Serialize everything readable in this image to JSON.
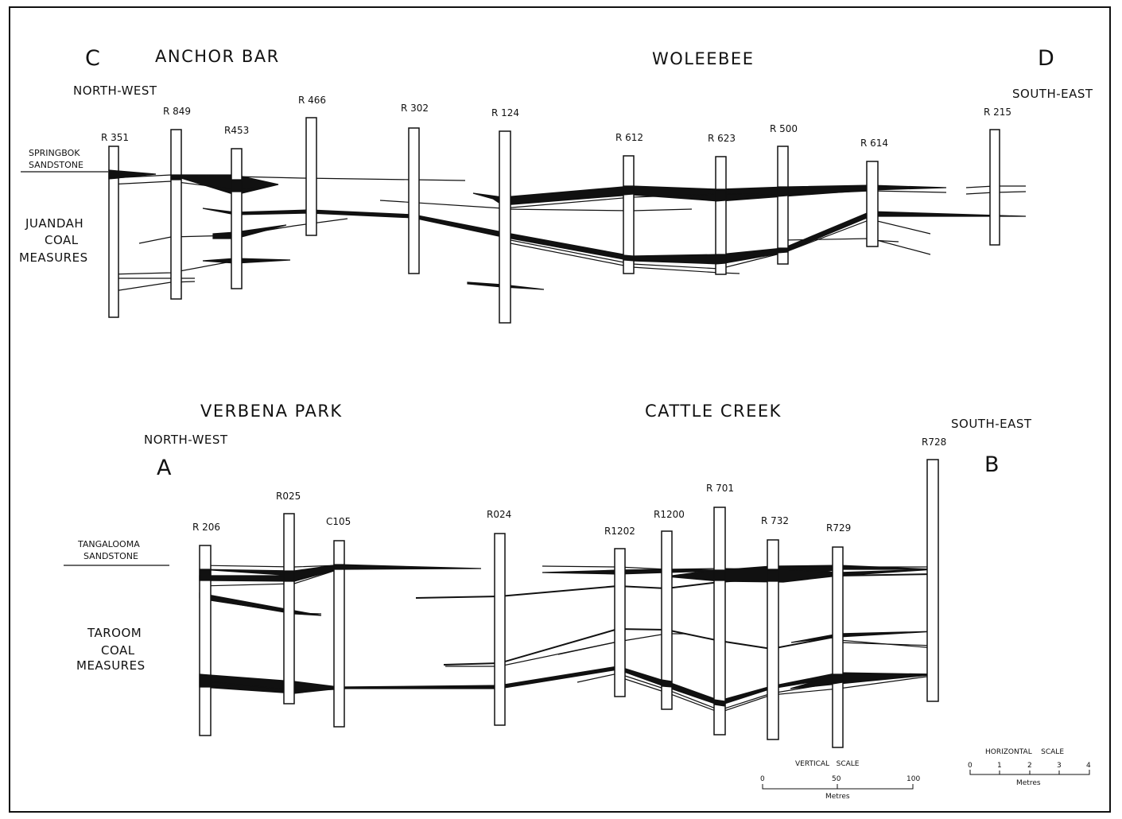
{
  "section_cd": {
    "left_letter": "C",
    "right_letter": "D",
    "place_left": "ANCHOR BAR",
    "place_right": "WOLEEBEE",
    "dir_left": "NORTH-WEST",
    "dir_right": "SOUTH-EAST",
    "upper_unit": [
      "SPRINGBOK",
      "SANDSTONE"
    ],
    "lower_unit": [
      "JUANDAH",
      "COAL",
      "MEASURES"
    ],
    "wells": [
      "R 351",
      "R 849",
      "R453",
      "R 466",
      "R 302",
      "R 124",
      "R 612",
      "R 623",
      "R 500",
      "R 614",
      "R 215"
    ]
  },
  "section_ab": {
    "left_letter": "A",
    "right_letter": "B",
    "place_left": "VERBENA PARK",
    "place_right": "CATTLE CREEK",
    "dir_left": "NORTH-WEST",
    "dir_right": "SOUTH-EAST",
    "upper_unit": [
      "TANGALOOMA",
      "SANDSTONE"
    ],
    "lower_unit": [
      "TAROOM",
      "COAL",
      "MEASURES"
    ],
    "wells": [
      "R 206",
      "R025",
      "C105",
      "R024",
      "R1202",
      "R1200",
      "R 701",
      "R 732",
      "R729",
      "R728"
    ]
  },
  "vertical_scale": {
    "title": "VERTICAL   SCALE",
    "ticks": [
      "0",
      "50",
      "100"
    ],
    "unit": "Metres"
  },
  "horizontal_scale": {
    "title": "HORIZONTAL    SCALE",
    "ticks": [
      "0",
      "1",
      "2",
      "3",
      "4"
    ],
    "unit": "Metres"
  }
}
